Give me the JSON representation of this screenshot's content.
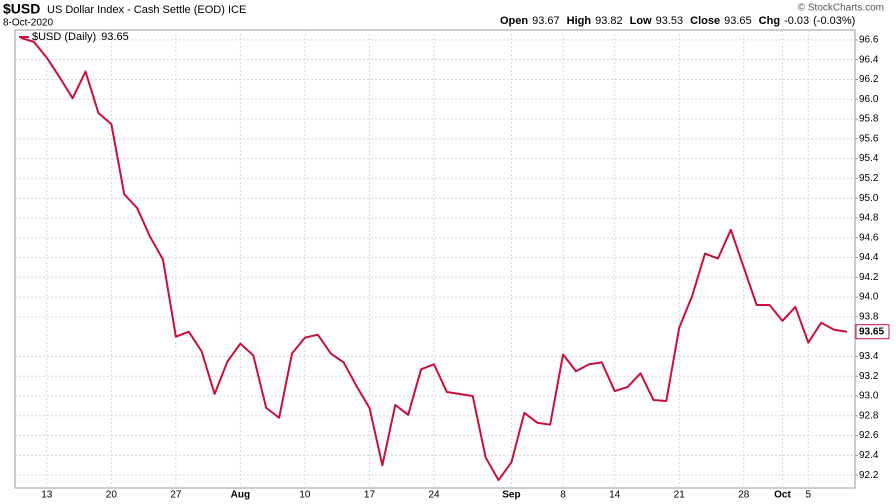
{
  "header": {
    "symbol": "$USD",
    "name": "US Dollar Index - Cash Settle (EOD)",
    "exchange": "ICE",
    "date": "8-Oct-2020",
    "stats": [
      {
        "label": "Open",
        "value": 93.67
      },
      {
        "label": "High",
        "value": 93.82
      },
      {
        "label": "Low",
        "value": 93.53
      },
      {
        "label": "Close",
        "value": 93.65
      }
    ],
    "change": {
      "label": "Chg",
      "value": -0.03,
      "percent_label": "(-0.03%)"
    },
    "credit": "© StockCharts.com"
  },
  "chart_data": {
    "type": "line",
    "categories": [
      null,
      null,
      "13",
      null,
      null,
      null,
      null,
      "20",
      null,
      null,
      null,
      null,
      "27",
      null,
      null,
      null,
      null,
      "Aug",
      null,
      null,
      null,
      null,
      "10",
      null,
      null,
      null,
      null,
      "17",
      null,
      null,
      null,
      null,
      "24",
      null,
      null,
      null,
      null,
      null,
      "Sep",
      null,
      null,
      null,
      "8",
      null,
      null,
      null,
      "14",
      null,
      null,
      null,
      null,
      "21",
      null,
      null,
      null,
      null,
      "28",
      null,
      null,
      "Oct",
      null,
      "5",
      null,
      null,
      null
    ],
    "series": [
      {
        "name": "$USD (Daily)",
        "color": "#c8103c",
        "values": [
          96.62,
          96.58,
          96.42,
          96.22,
          96.01,
          96.28,
          95.86,
          95.75,
          95.04,
          94.9,
          94.61,
          94.38,
          93.6,
          93.65,
          93.45,
          93.02,
          93.35,
          93.53,
          93.41,
          92.88,
          92.78,
          93.43,
          93.59,
          93.62,
          93.43,
          93.34,
          93.1,
          92.88,
          92.3,
          92.91,
          92.81,
          93.27,
          93.32,
          93.04,
          93.02,
          93.0,
          92.38,
          92.15,
          92.33,
          92.83,
          92.73,
          92.71,
          93.42,
          93.25,
          93.32,
          93.34,
          93.05,
          93.09,
          93.23,
          92.96,
          92.95,
          93.69,
          94.01,
          94.44,
          94.39,
          94.68,
          94.3,
          93.92,
          93.92,
          93.76,
          93.9,
          93.54,
          93.74,
          93.67,
          93.65
        ]
      }
    ],
    "last_price": 93.65,
    "ylim": [
      92.07,
      96.7
    ],
    "yticks": [
      92.2,
      92.4,
      92.6,
      92.8,
      {
        "value": 93,
        "label": "93.0"
      },
      93.2,
      93.4,
      93.8,
      {
        "value": 94,
        "label": "94.0"
      },
      94.2,
      94.4,
      94.6,
      94.8,
      {
        "value": 95,
        "label": "95.0"
      },
      95.2,
      95.4,
      95.6,
      95.8,
      {
        "value": 96,
        "label": "96.0"
      },
      96.2,
      96.4,
      96.6
    ],
    "grid": true
  }
}
